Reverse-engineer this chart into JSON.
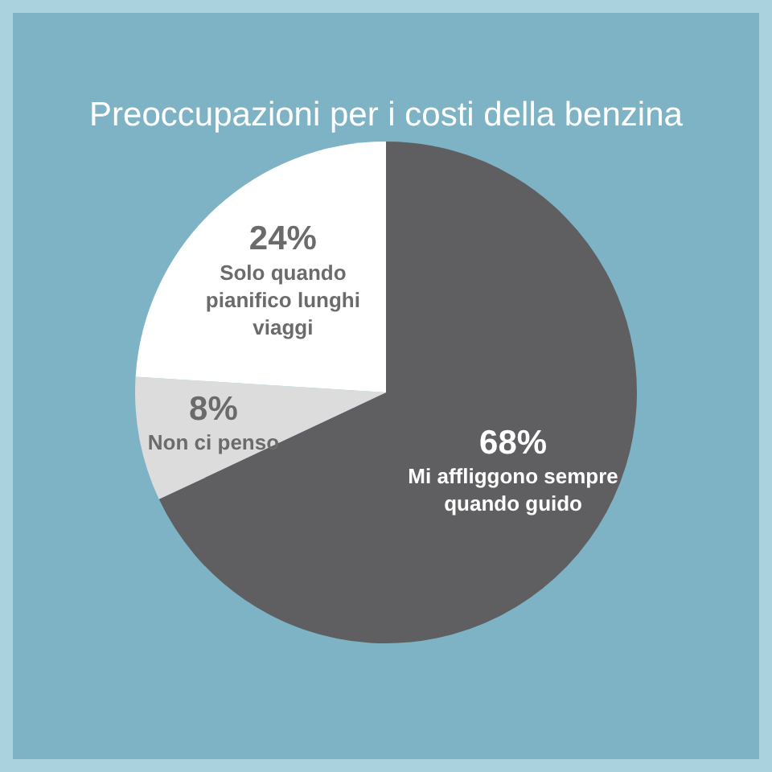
{
  "chart_data": {
    "type": "pie",
    "title": "Preoccupazioni per i costi della benzina",
    "categories": [
      "Mi affliggono sempre quando guido",
      "Non ci penso",
      "Solo quando pianifico lunghi viaggi"
    ],
    "values": [
      68,
      8,
      24
    ],
    "value_labels": [
      "68%",
      "8%",
      "24%"
    ],
    "colors": [
      "#5f5f61",
      "#dcdcdc",
      "#ffffff"
    ],
    "legend": false
  }
}
